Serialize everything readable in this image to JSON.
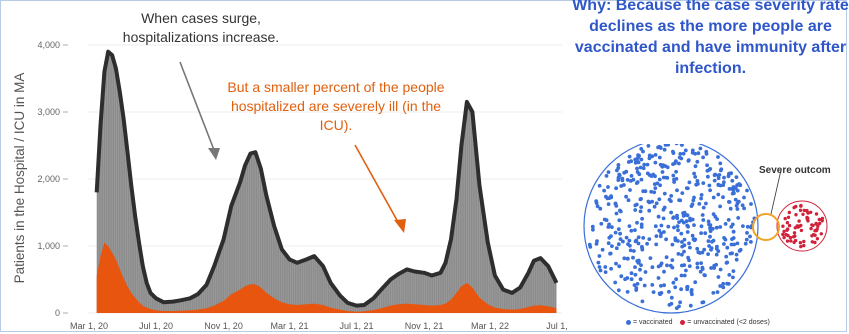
{
  "chart_data": {
    "type": "area",
    "ylabel": "Patients in the Hospital / ICU in MA",
    "xlabel": "",
    "ylim": [
      0,
      4300
    ],
    "yticks": [
      0,
      1000,
      2000,
      3000,
      4000
    ],
    "ytick_labels": [
      "0",
      "1,000",
      "2,000",
      "3,000",
      "4,000"
    ],
    "xtick_labels": [
      "Mar 1, 20",
      "Jul 1, 20",
      "Nov 1, 20",
      "Mar 1, 21",
      "Jul 1, 21",
      "Nov 1, 21",
      "Mar 1, 22",
      "Jul 1,"
    ],
    "x": [
      "2020-03-15",
      "2020-03-22",
      "2020-03-29",
      "2020-04-05",
      "2020-04-12",
      "2020-04-19",
      "2020-04-26",
      "2020-05-03",
      "2020-05-10",
      "2020-05-17",
      "2020-05-24",
      "2020-05-31",
      "2020-06-07",
      "2020-06-14",
      "2020-06-21",
      "2020-07-01",
      "2020-07-15",
      "2020-08-01",
      "2020-08-15",
      "2020-09-01",
      "2020-09-15",
      "2020-10-01",
      "2020-10-15",
      "2020-11-01",
      "2020-11-15",
      "2020-12-01",
      "2020-12-10",
      "2020-12-20",
      "2020-12-29",
      "2021-01-08",
      "2021-01-18",
      "2021-02-01",
      "2021-02-15",
      "2021-03-01",
      "2021-03-15",
      "2021-04-01",
      "2021-04-15",
      "2021-05-01",
      "2021-05-15",
      "2021-06-01",
      "2021-06-15",
      "2021-07-01",
      "2021-07-15",
      "2021-08-01",
      "2021-08-15",
      "2021-09-01",
      "2021-09-15",
      "2021-10-01",
      "2021-10-15",
      "2021-11-01",
      "2021-11-15",
      "2021-12-01",
      "2021-12-10",
      "2021-12-20",
      "2021-12-30",
      "2022-01-08",
      "2022-01-18",
      "2022-01-28",
      "2022-02-10",
      "2022-02-25",
      "2022-03-10",
      "2022-03-25",
      "2022-04-10",
      "2022-04-25",
      "2022-05-10",
      "2022-05-20",
      "2022-06-01",
      "2022-06-15",
      "2022-06-30"
    ],
    "series": [
      {
        "values": [
          1800,
          2800,
          3600,
          3900,
          3850,
          3650,
          3300,
          2900,
          2400,
          1900,
          1450,
          1050,
          700,
          450,
          300,
          220,
          160,
          170,
          190,
          220,
          280,
          420,
          700,
          1100,
          1600,
          1950,
          2200,
          2380,
          2400,
          2150,
          1750,
          1300,
          950,
          800,
          750,
          800,
          850,
          700,
          450,
          260,
          150,
          110,
          120,
          220,
          350,
          500,
          580,
          650,
          620,
          600,
          560,
          600,
          750,
          1100,
          1700,
          2500,
          3150,
          3000,
          1900,
          1050,
          560,
          350,
          300,
          380,
          600,
          780,
          820,
          700,
          450
        ],
        "color": "#8c8c8c"
      },
      {
        "values": [
          550,
          850,
          1050,
          1000,
          900,
          800,
          650,
          520,
          400,
          300,
          230,
          160,
          110,
          80,
          60,
          40,
          30,
          30,
          35,
          40,
          50,
          70,
          110,
          180,
          280,
          350,
          400,
          430,
          430,
          380,
          300,
          220,
          160,
          130,
          120,
          130,
          140,
          120,
          80,
          50,
          30,
          20,
          25,
          45,
          70,
          110,
          130,
          140,
          130,
          120,
          110,
          120,
          140,
          200,
          300,
          400,
          450,
          380,
          230,
          130,
          80,
          60,
          50,
          60,
          90,
          110,
          115,
          100,
          70
        ],
        "color": "#e8550e"
      }
    ],
    "outline_color": "#2e2e2e"
  },
  "annotations": {
    "surge": "When cases surge, hospitalizations increase.",
    "icu": "But a smaller percent of the people hospitalized are severely ill (in the ICU)."
  },
  "explanation": {
    "why_word": "Why:",
    "text": "Because the case severity rate declines as the more people are vaccinated and have immunity after infection."
  },
  "venn": {
    "label": "Severe outcom",
    "legend_vaccinated": "= vaccinated",
    "legend_unvaccinated": "= unvaccinated (<2 doses)",
    "vaccinated_color": "#3a6fd8",
    "unvaccinated_color": "#d0223a",
    "overlap_color": "#f0a42a"
  }
}
